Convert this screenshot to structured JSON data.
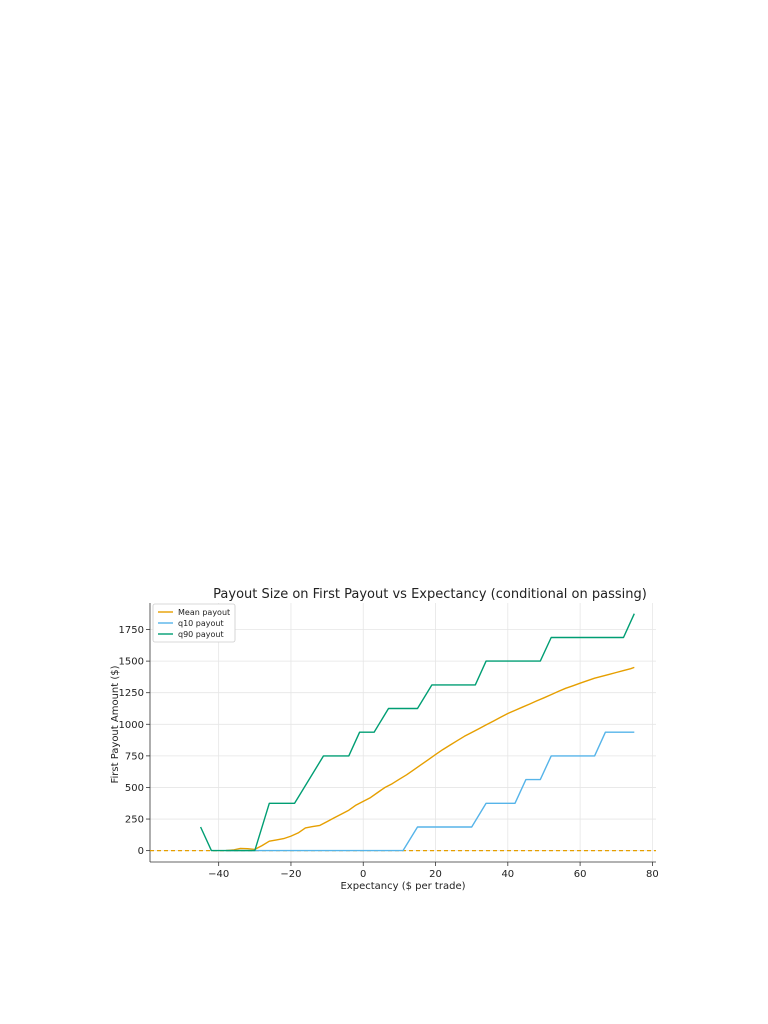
{
  "chart_data": {
    "type": "line",
    "title": "Payout Size on First Payout vs Expectancy (conditional on passing)",
    "xlabel": "Expectancy ($ per trade)",
    "ylabel": "First Payout Amount ($)",
    "xlim": [
      -59,
      81
    ],
    "ylim": [
      -90,
      1960
    ],
    "xticks": [
      -40,
      -20,
      0,
      20,
      40,
      60,
      80
    ],
    "xtick_labels": [
      "−40",
      "−20",
      "0",
      "20",
      "40",
      "60",
      "80"
    ],
    "yticks": [
      0,
      250,
      500,
      750,
      1000,
      1250,
      1500,
      1750
    ],
    "ytick_labels": [
      "0",
      "250",
      "500",
      "750",
      "1000",
      "1250",
      "1500",
      "1750"
    ],
    "grid": true,
    "legend_position": "top-left",
    "baseline": {
      "y": 0,
      "style": "dashed",
      "color": "#E69F00"
    },
    "series": [
      {
        "name": "Mean payout",
        "color": "#E69F00",
        "points": [
          [
            -38,
            0
          ],
          [
            -36,
            5
          ],
          [
            -34,
            18
          ],
          [
            -32,
            15
          ],
          [
            -30,
            10
          ],
          [
            -28,
            40
          ],
          [
            -26,
            75
          ],
          [
            -24,
            85
          ],
          [
            -22,
            95
          ],
          [
            -20,
            115
          ],
          [
            -18,
            140
          ],
          [
            -16,
            180
          ],
          [
            -14,
            190
          ],
          [
            -12,
            200
          ],
          [
            -10,
            230
          ],
          [
            -8,
            260
          ],
          [
            -6,
            290
          ],
          [
            -4,
            320
          ],
          [
            -2,
            360
          ],
          [
            0,
            390
          ],
          [
            2,
            420
          ],
          [
            4,
            460
          ],
          [
            6,
            500
          ],
          [
            8,
            530
          ],
          [
            10,
            565
          ],
          [
            12,
            600
          ],
          [
            14,
            640
          ],
          [
            16,
            680
          ],
          [
            18,
            720
          ],
          [
            20,
            760
          ],
          [
            22,
            800
          ],
          [
            24,
            835
          ],
          [
            26,
            870
          ],
          [
            28,
            905
          ],
          [
            30,
            935
          ],
          [
            32,
            965
          ],
          [
            34,
            995
          ],
          [
            36,
            1025
          ],
          [
            38,
            1055
          ],
          [
            40,
            1085
          ],
          [
            42,
            1110
          ],
          [
            44,
            1135
          ],
          [
            46,
            1160
          ],
          [
            48,
            1185
          ],
          [
            50,
            1210
          ],
          [
            52,
            1235
          ],
          [
            54,
            1260
          ],
          [
            56,
            1285
          ],
          [
            58,
            1305
          ],
          [
            60,
            1325
          ],
          [
            62,
            1345
          ],
          [
            64,
            1365
          ],
          [
            66,
            1380
          ],
          [
            68,
            1395
          ],
          [
            70,
            1410
          ],
          [
            72,
            1425
          ],
          [
            74,
            1440
          ],
          [
            75,
            1450
          ]
        ]
      },
      {
        "name": "q10 payout",
        "color": "#56B4E9",
        "points": [
          [
            -38,
            0
          ],
          [
            11,
            0
          ],
          [
            15,
            187
          ],
          [
            30,
            187
          ],
          [
            34,
            375
          ],
          [
            42,
            375
          ],
          [
            45,
            562
          ],
          [
            49,
            562
          ],
          [
            52,
            750
          ],
          [
            64,
            750
          ],
          [
            67,
            937
          ],
          [
            75,
            937
          ]
        ]
      },
      {
        "name": "q90 payout",
        "color": "#009E73",
        "points": [
          [
            -45,
            187
          ],
          [
            -42,
            0
          ],
          [
            -30,
            0
          ],
          [
            -26,
            375
          ],
          [
            -19,
            375
          ],
          [
            -11,
            750
          ],
          [
            -4,
            750
          ],
          [
            -1,
            937
          ],
          [
            3,
            937
          ],
          [
            7,
            1125
          ],
          [
            15,
            1125
          ],
          [
            19,
            1312
          ],
          [
            31,
            1312
          ],
          [
            34,
            1500
          ],
          [
            49,
            1500
          ],
          [
            52,
            1687
          ],
          [
            72,
            1687
          ],
          [
            75,
            1875
          ]
        ]
      }
    ]
  }
}
